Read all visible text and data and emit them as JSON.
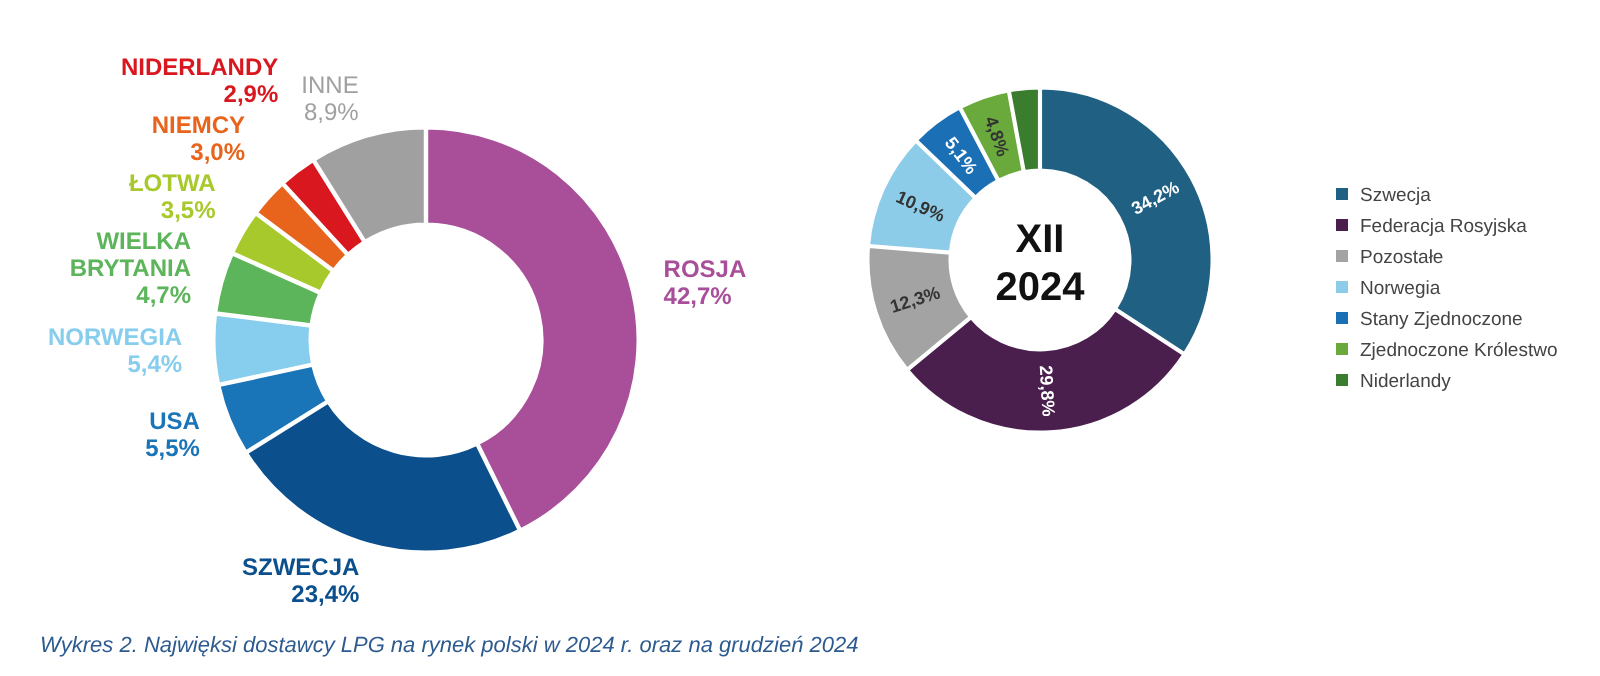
{
  "chart_data": [
    {
      "type": "donut",
      "categories": [
        "ROSJA",
        "SZWECJA",
        "USA",
        "NORWEGIA",
        "WIELKA BRYTANIA",
        "ŁOTWA",
        "NIEMCY",
        "NIDERLANDY",
        "INNE"
      ],
      "values": [
        42.7,
        23.4,
        5.5,
        5.4,
        4.7,
        3.5,
        3.0,
        2.9,
        8.9
      ],
      "value_labels": [
        "42,7%",
        "23,4%",
        "5,5%",
        "5,4%",
        "4,7%",
        "3,5%",
        "3,0%",
        "2,9%",
        "8,9%"
      ],
      "colors": [
        "#a94f9a",
        "#0b4f8c",
        "#1a74b8",
        "#86cdee",
        "#5cb55a",
        "#a8c92b",
        "#e8641c",
        "#d8171f",
        "#a0a0a0"
      ],
      "legend": false,
      "annotations": [
        "Wykres 2. Najwięksi dostawcy LPG na rynek polski w 2024 r. oraz na grudzień 2024"
      ]
    },
    {
      "type": "donut",
      "title": "XII 2024",
      "categories": [
        "Szwecja",
        "Federacja Rosyjska",
        "Pozostałe",
        "Norwegia",
        "Stany Zjednoczone",
        "Zjednoczone Królestwo",
        "Niderlandy"
      ],
      "values": [
        34.2,
        29.8,
        12.3,
        10.9,
        5.1,
        4.8,
        2.9
      ],
      "value_labels": [
        "34,2%",
        "29,8%",
        "12,3%",
        "10,9%",
        "5,1%",
        "4,8%",
        null
      ],
      "colors": [
        "#1f6083",
        "#4a1f4d",
        "#a3a3a3",
        "#8ccce8",
        "#1a6fb5",
        "#6aaa3c",
        "#3b7d2e"
      ],
      "legend": "right"
    }
  ]
}
